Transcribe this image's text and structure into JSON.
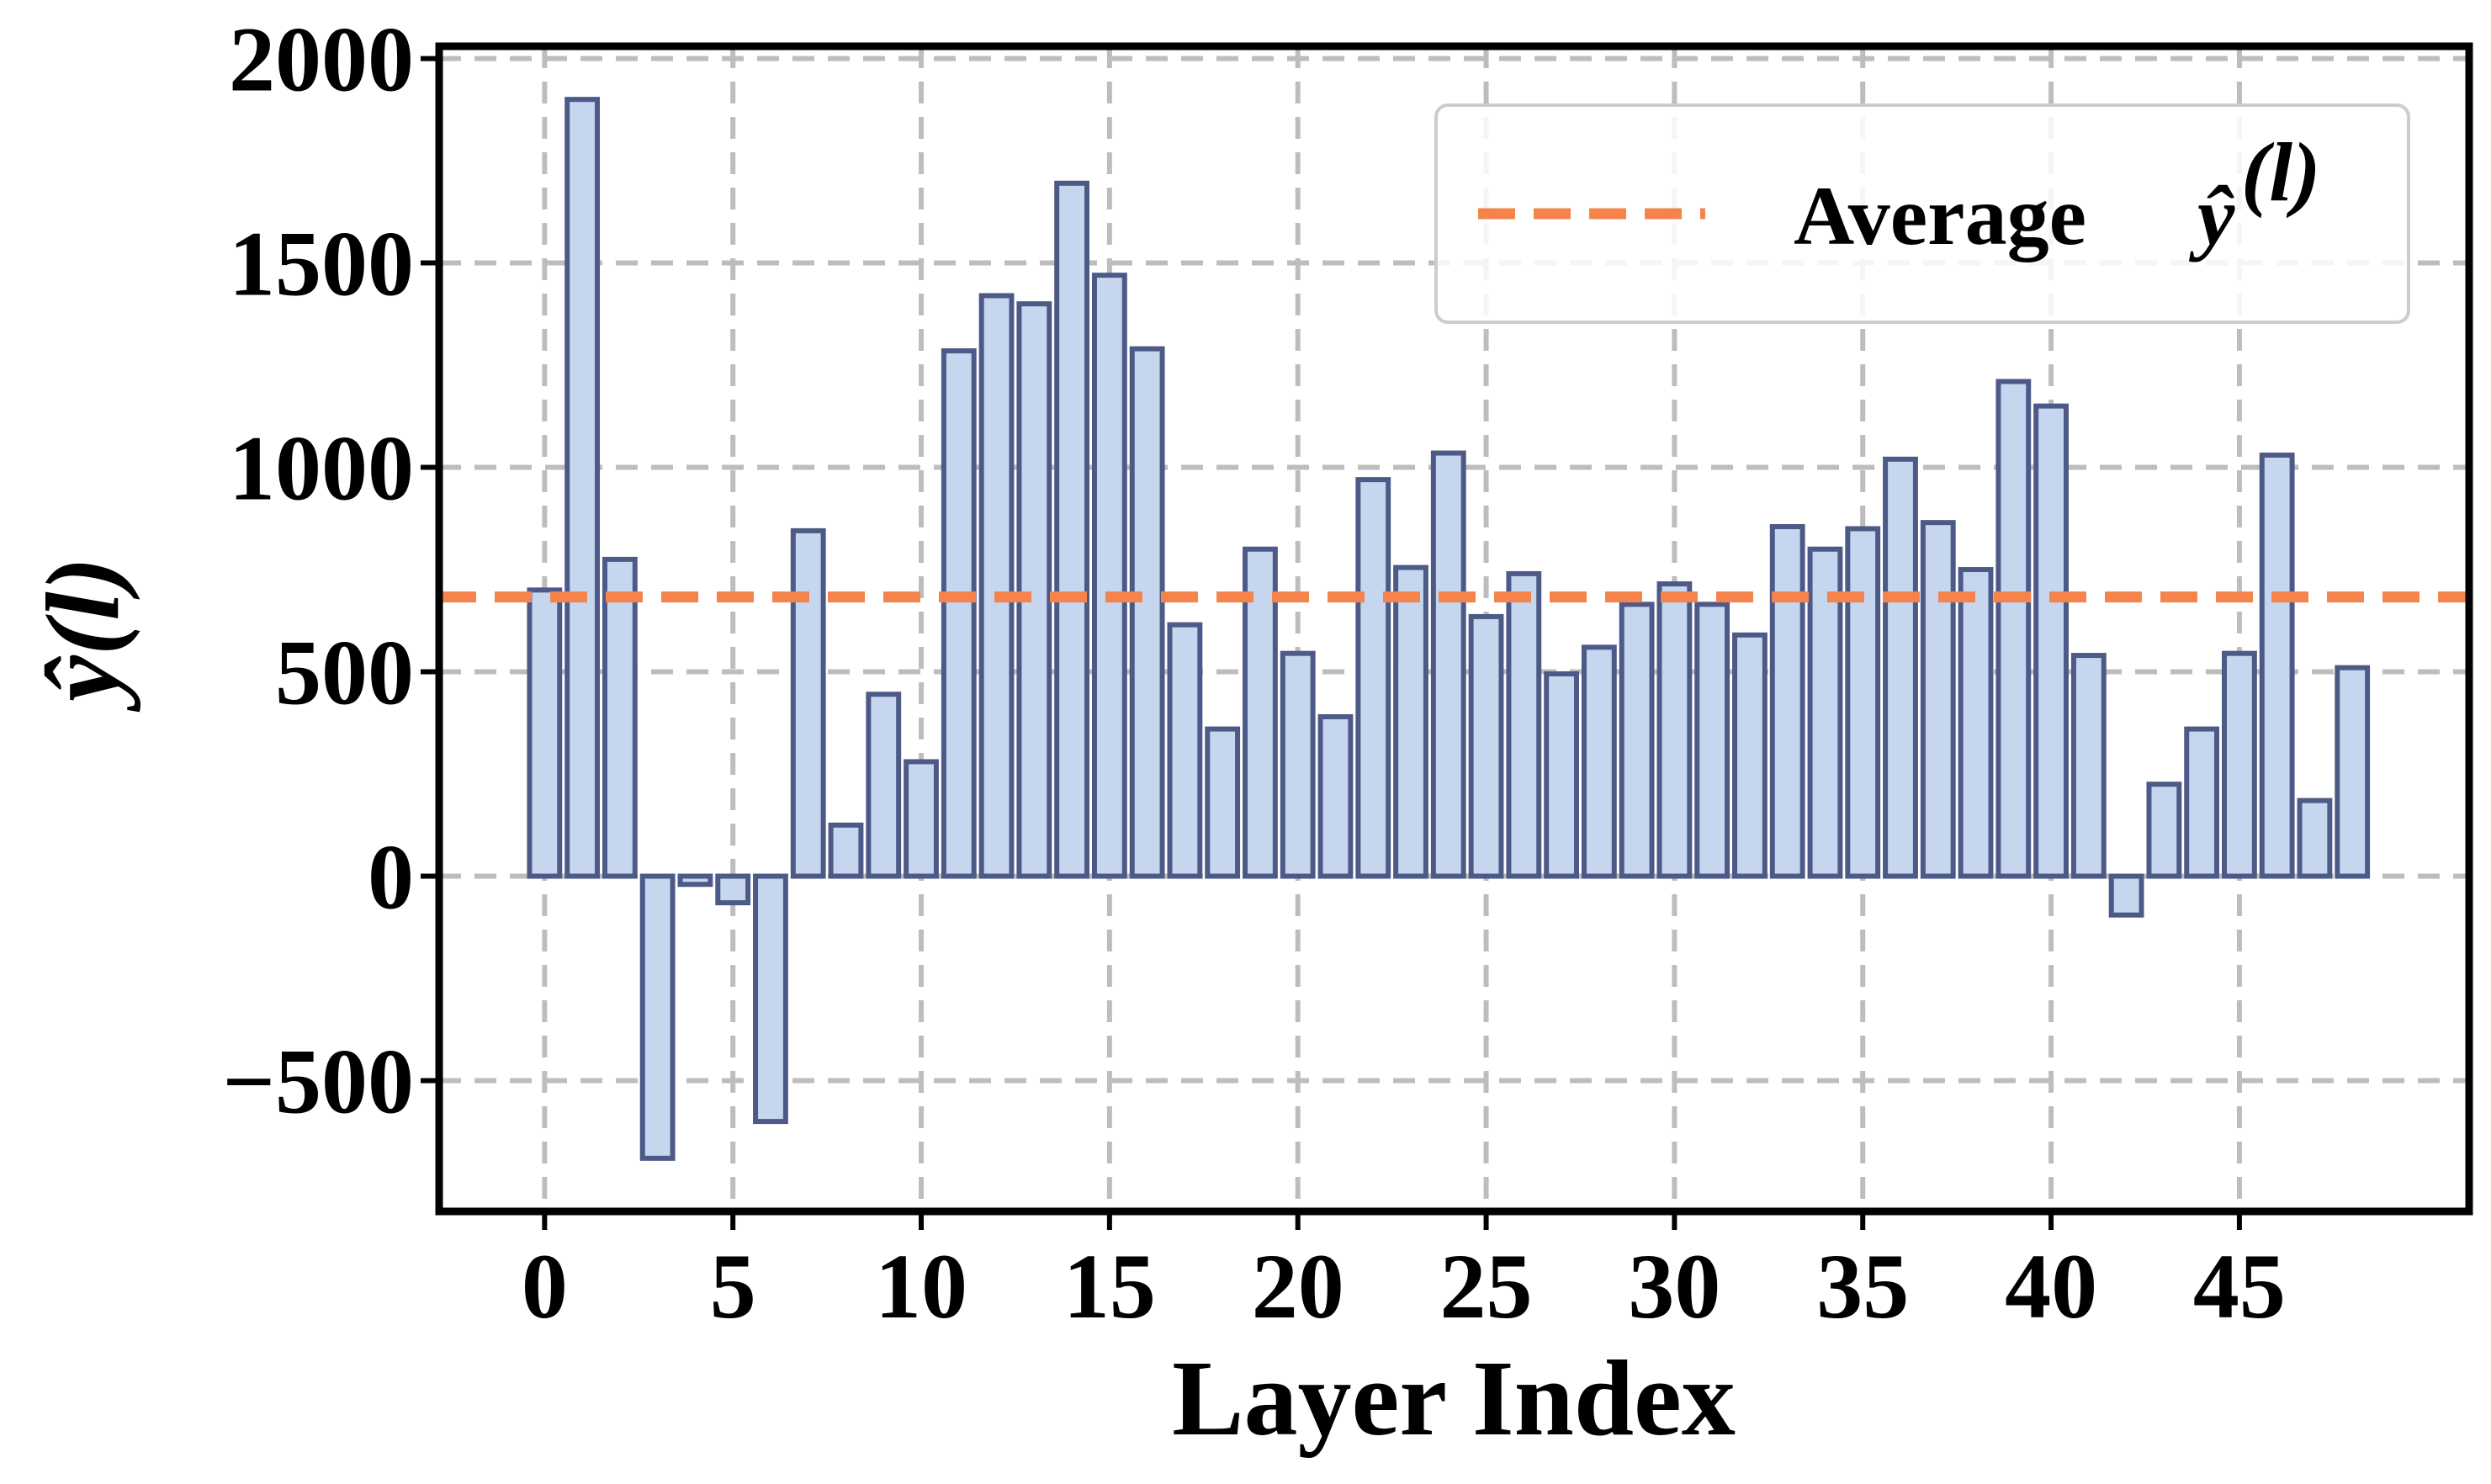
{
  "chart_data": {
    "type": "bar",
    "title": "",
    "xlabel": "Layer Index",
    "ylabel": "ŷ(l)",
    "x": [
      0,
      1,
      2,
      3,
      4,
      5,
      6,
      7,
      8,
      9,
      10,
      11,
      12,
      13,
      14,
      15,
      16,
      17,
      18,
      19,
      20,
      21,
      22,
      23,
      24,
      25,
      26,
      27,
      28,
      29,
      30,
      31,
      32,
      33,
      34,
      35,
      36,
      37,
      38,
      39,
      40,
      41,
      42,
      43,
      44,
      45,
      46,
      47,
      48
    ],
    "values": [
      700,
      1900,
      775,
      -690,
      -20,
      -65,
      -600,
      845,
      125,
      445,
      280,
      1285,
      1420,
      1400,
      1695,
      1470,
      1290,
      615,
      360,
      800,
      545,
      390,
      970,
      755,
      1035,
      635,
      740,
      495,
      560,
      665,
      715,
      665,
      590,
      855,
      800,
      850,
      1020,
      865,
      750,
      1210,
      1150,
      540,
      -95,
      225,
      360,
      545,
      1030,
      185,
      510
    ],
    "xticks": [
      0,
      5,
      10,
      15,
      20,
      25,
      30,
      35,
      40,
      45
    ],
    "yticks": [
      -500,
      0,
      500,
      1000,
      1500,
      2000
    ],
    "xlim": [
      -2.8,
      51.1
    ],
    "ylim": [
      -820,
      2030
    ],
    "grid": true,
    "bar_fill": "#c5d6ee",
    "bar_edge": "#4d5a87",
    "average": {
      "value": 683,
      "color": "#f5844c",
      "legend_text": "Average",
      "legend_math_base": "ŷ",
      "legend_math_sup": "(l)"
    },
    "legend_position": "top-right"
  }
}
